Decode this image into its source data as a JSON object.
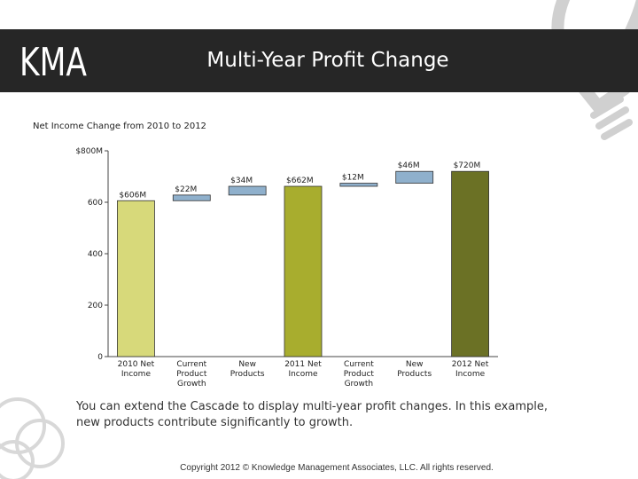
{
  "header": {
    "logo_text": "KMA",
    "title": "Multi-Year Profit Change"
  },
  "chart_data": {
    "type": "waterfall",
    "title": "Net Income Change from 2010 to 2012",
    "xlabel": "",
    "ylabel": "",
    "ylim": [
      0,
      800
    ],
    "yticks": [
      {
        "value": 0,
        "label": "0"
      },
      {
        "value": 200,
        "label": "200"
      },
      {
        "value": 400,
        "label": "400"
      },
      {
        "value": 600,
        "label": "600"
      },
      {
        "value": 800,
        "label": "$800M"
      }
    ],
    "bars": [
      {
        "category": [
          "2010 Net",
          "Income"
        ],
        "kind": "total",
        "start": 0,
        "end": 606,
        "label": "$606M",
        "color": "#d7d97a"
      },
      {
        "category": [
          "Current",
          "Product",
          "Growth"
        ],
        "kind": "delta",
        "start": 606,
        "end": 628,
        "label": "$22M",
        "color": "#8fb0cc"
      },
      {
        "category": [
          "New",
          "Products"
        ],
        "kind": "delta",
        "start": 628,
        "end": 662,
        "label": "$34M",
        "color": "#8fb0cc"
      },
      {
        "category": [
          "2011 Net",
          "Income"
        ],
        "kind": "total",
        "start": 0,
        "end": 662,
        "label": "$662M",
        "color": "#a8ad2e"
      },
      {
        "category": [
          "Current",
          "Product",
          "Growth"
        ],
        "kind": "delta",
        "start": 662,
        "end": 674,
        "label": "$12M",
        "color": "#8fb0cc"
      },
      {
        "category": [
          "New",
          "Products"
        ],
        "kind": "delta",
        "start": 674,
        "end": 720,
        "label": "$46M",
        "color": "#8fb0cc"
      },
      {
        "category": [
          "2012 Net",
          "Income"
        ],
        "kind": "total",
        "start": 0,
        "end": 720,
        "label": "$720M",
        "color": "#6b7125"
      }
    ]
  },
  "caption": "You can extend the Cascade to display multi-year profit changes.  In this example, new products contribute significantly to growth.",
  "footer": "Copyright 2012 © Knowledge Management Associates, LLC.  All rights reserved."
}
